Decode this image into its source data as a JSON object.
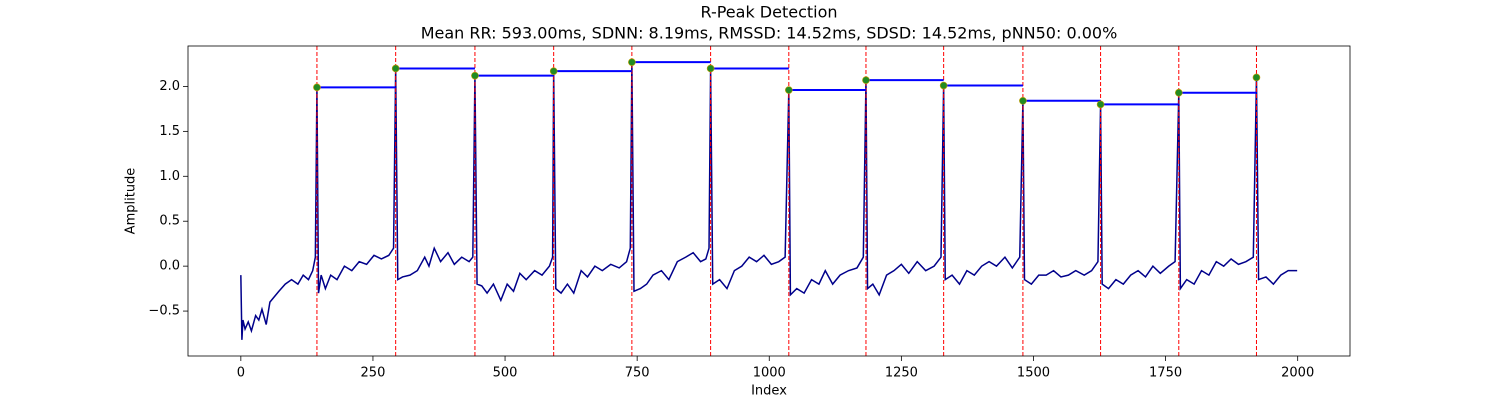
{
  "chart_data": {
    "type": "line",
    "title": "R-Peak Detection",
    "subtitle": "Mean RR: 593.00ms, SDNN: 8.19ms, RMSSD: 14.52ms, SDSD: 14.52ms, pNN50: 0.00%",
    "x_label": "Index",
    "y_label": "Amplitude",
    "xlim": [
      -100,
      2099
    ],
    "ylim": [
      -1.0,
      2.45
    ],
    "xticks": [
      0,
      250,
      500,
      750,
      1000,
      1250,
      1500,
      1750,
      2000
    ],
    "yticks": [
      {
        "value": -0.5,
        "label": "−0.5"
      },
      {
        "value": 0,
        "label": "0.0"
      },
      {
        "value": 0.5,
        "label": "0.5"
      },
      {
        "value": 1,
        "label": "1.0"
      },
      {
        "value": 1.5,
        "label": "1.5"
      },
      {
        "value": 2,
        "label": "2.0"
      }
    ],
    "series": [
      {
        "color": "#00008b",
        "x": [
          0,
          2,
          4,
          8,
          14,
          20,
          28,
          34,
          40,
          48,
          55,
          62,
          72,
          84,
          96,
          108,
          118,
          128,
          136,
          141,
          144,
          147,
          152,
          160,
          170,
          182,
          196,
          210,
          224,
          238,
          252,
          266,
          280,
          289,
          293,
          297,
          306,
          320,
          334,
          348,
          356,
          366,
          378,
          392,
          404,
          418,
          432,
          439,
          443,
          447,
          456,
          466,
          478,
          492,
          504,
          516,
          528,
          540,
          556,
          570,
          584,
          590,
          592,
          596,
          606,
          618,
          630,
          644,
          656,
          670,
          684,
          700,
          716,
          730,
          737,
          740,
          744,
          756,
          768,
          780,
          796,
          810,
          826,
          842,
          856,
          870,
          880,
          886,
          889,
          893,
          906,
          920,
          934,
          948,
          962,
          976,
          990,
          1004,
          1018,
          1030,
          1037,
          1040,
          1052,
          1066,
          1080,
          1094,
          1106,
          1120,
          1134,
          1150,
          1166,
          1178,
          1183,
          1186,
          1196,
          1208,
          1222,
          1236,
          1250,
          1264,
          1280,
          1296,
          1312,
          1325,
          1330,
          1333,
          1346,
          1360,
          1374,
          1388,
          1402,
          1416,
          1430,
          1446,
          1460,
          1474,
          1480,
          1483,
          1496,
          1510,
          1524,
          1538,
          1552,
          1566,
          1580,
          1596,
          1610,
          1622,
          1627,
          1630,
          1642,
          1656,
          1670,
          1684,
          1698,
          1712,
          1726,
          1740,
          1756,
          1768,
          1775,
          1778,
          1790,
          1804,
          1818,
          1832,
          1846,
          1860,
          1874,
          1888,
          1902,
          1916,
          1922,
          1926,
          1940,
          1954,
          1968,
          1982,
          1999
        ],
        "values": [
          -0.1,
          -0.82,
          -0.6,
          -0.7,
          -0.62,
          -0.72,
          -0.55,
          -0.6,
          -0.48,
          -0.65,
          -0.4,
          -0.35,
          -0.28,
          -0.2,
          -0.15,
          -0.2,
          -0.1,
          -0.15,
          -0.05,
          0.1,
          1.99,
          -0.3,
          -0.1,
          -0.25,
          -0.1,
          -0.15,
          0.0,
          -0.05,
          0.05,
          0.02,
          0.12,
          0.08,
          0.12,
          0.2,
          2.2,
          -0.15,
          -0.12,
          -0.1,
          -0.05,
          0.1,
          0.0,
          0.2,
          0.05,
          0.15,
          0.02,
          0.1,
          0.05,
          0.1,
          2.12,
          -0.2,
          -0.22,
          -0.3,
          -0.2,
          -0.38,
          -0.2,
          -0.28,
          -0.08,
          -0.15,
          -0.05,
          -0.1,
          0.0,
          0.1,
          2.17,
          -0.25,
          -0.3,
          -0.2,
          -0.3,
          -0.05,
          -0.12,
          0.0,
          -0.05,
          0.02,
          -0.02,
          0.05,
          0.2,
          2.27,
          -0.28,
          -0.25,
          -0.2,
          -0.1,
          -0.05,
          -0.15,
          0.05,
          0.1,
          0.15,
          0.05,
          0.08,
          0.2,
          2.2,
          -0.2,
          -0.15,
          -0.25,
          -0.05,
          0.0,
          0.1,
          0.05,
          0.12,
          0.02,
          0.05,
          0.1,
          1.96,
          -0.32,
          -0.25,
          -0.3,
          -0.15,
          -0.2,
          -0.05,
          -0.2,
          -0.1,
          -0.05,
          -0.02,
          0.1,
          2.07,
          -0.25,
          -0.2,
          -0.32,
          -0.1,
          -0.05,
          0.02,
          -0.08,
          0.05,
          -0.05,
          0.0,
          0.1,
          2.01,
          -0.15,
          -0.1,
          -0.2,
          -0.05,
          -0.1,
          0.0,
          0.05,
          0.0,
          0.1,
          -0.02,
          0.1,
          1.84,
          -0.15,
          -0.2,
          -0.1,
          -0.1,
          -0.05,
          -0.12,
          -0.1,
          -0.05,
          -0.1,
          -0.05,
          0.05,
          1.8,
          -0.2,
          -0.25,
          -0.15,
          -0.2,
          -0.1,
          -0.05,
          -0.12,
          0.0,
          -0.08,
          0.0,
          0.05,
          1.93,
          -0.25,
          -0.15,
          -0.2,
          -0.05,
          -0.1,
          0.05,
          0.0,
          0.08,
          0.02,
          0.05,
          0.1,
          2.1,
          -0.15,
          -0.12,
          -0.2,
          -0.1,
          -0.05,
          -0.05
        ]
      }
    ],
    "peaks": {
      "color": "#228b22",
      "line_color": "#ff0000",
      "rr_color": "#0000ff",
      "x": [
        144,
        293,
        443,
        592,
        740,
        889,
        1037,
        1183,
        1330,
        1480,
        1627,
        1775,
        1922
      ],
      "values": [
        1.99,
        2.2,
        2.12,
        2.17,
        2.27,
        2.2,
        1.96,
        2.07,
        2.01,
        1.84,
        1.8,
        1.93,
        2.1
      ]
    }
  }
}
